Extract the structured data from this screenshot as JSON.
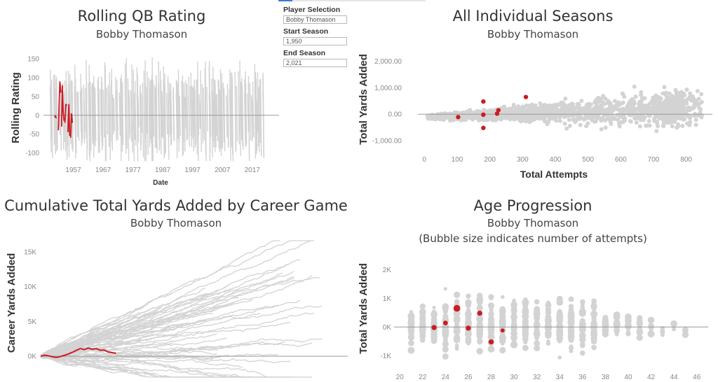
{
  "controls": {
    "player_label": "Player Selection",
    "player_value": "Bobby Thomason",
    "start_label": "Start Season",
    "start_value": "1,950",
    "end_label": "End Season",
    "end_value": "2,021"
  },
  "colors": {
    "highlight": "#cc1b24",
    "background_series": "#d3d3d3",
    "zero_line": "#999999"
  },
  "chart_data": [
    {
      "id": "rolling",
      "type": "line",
      "title": "Rolling QB Rating",
      "subtitle": "Bobby Thomason",
      "xlabel": "Date",
      "ylabel": "Rolling Rating",
      "xlim": [
        1947,
        2026
      ],
      "ylim": [
        -125,
        165
      ],
      "yticks": [
        150,
        100,
        50,
        0,
        -50,
        -100
      ],
      "xticks": [
        1957,
        1967,
        1977,
        1987,
        1997,
        2007,
        2017
      ],
      "grid": false,
      "highlight_series": {
        "name": "Bobby Thomason",
        "segments": [
          {
            "x": [
              1950.7,
              1951.0,
              1951.3
            ],
            "y": [
              -5,
              -2,
              -8
            ]
          },
          {
            "x": [
              1952.0,
              1952.2,
              1952.5,
              1952.8
            ],
            "y": [
              -40,
              20,
              90,
              60
            ]
          },
          {
            "x": [
              1953.1,
              1953.3,
              1953.6,
              1953.9
            ],
            "y": [
              -30,
              80,
              10,
              -15
            ]
          },
          {
            "x": [
              1954.2,
              1954.5,
              1954.8
            ],
            "y": [
              -20,
              30,
              25
            ]
          },
          {
            "x": [
              1955.2,
              1955.5,
              1955.8
            ],
            "y": [
              -45,
              30,
              -55
            ]
          },
          {
            "x": [
              1956.1,
              1956.4,
              1956.7
            ],
            "y": [
              -60,
              5,
              -20
            ]
          }
        ]
      }
    },
    {
      "id": "seasons",
      "type": "scatter",
      "title": "All Individual Seasons",
      "subtitle": "Bobby Thomason",
      "xlabel": "Total Attempts",
      "ylabel": "Total Yards Added",
      "xlim": [
        -20,
        880
      ],
      "ylim": [
        -1400,
        2550
      ],
      "xticks": [
        0,
        100,
        200,
        300,
        400,
        500,
        600,
        700,
        800
      ],
      "yticks": [
        2000,
        1000,
        0,
        -1000
      ],
      "ytick_labels": [
        "2,000.00",
        "1,000.00",
        "0.00",
        "-1,000.00"
      ],
      "grid": false,
      "highlight_points": [
        {
          "x": 103,
          "y": -110
        },
        {
          "x": 180,
          "y": 480
        },
        {
          "x": 180,
          "y": -20
        },
        {
          "x": 180,
          "y": -520
        },
        {
          "x": 222,
          "y": 20
        },
        {
          "x": 226,
          "y": 150
        },
        {
          "x": 310,
          "y": 650
        }
      ]
    },
    {
      "id": "cumulative",
      "type": "line",
      "title": "Cumulative Total Yards Added by Career Game",
      "subtitle": "Bobby Thomason",
      "xlabel": "",
      "ylabel": "Career Yards Added",
      "xlim": [
        0,
        310
      ],
      "ylim": [
        -3300,
        16800
      ],
      "yticks": [
        15000,
        10000,
        5000,
        0
      ],
      "ytick_labels": [
        "15K",
        "10K",
        "5K",
        "0K"
      ],
      "grid": false,
      "highlight_series": {
        "name": "Bobby Thomason",
        "x": [
          0,
          4,
          8,
          12,
          16,
          20,
          24,
          28,
          32,
          36,
          40,
          44,
          48,
          52,
          56,
          60,
          64,
          68,
          72,
          76
        ],
        "y": [
          0,
          150,
          60,
          -80,
          -180,
          -40,
          130,
          320,
          560,
          840,
          1100,
          950,
          1180,
          1000,
          1100,
          860,
          900,
          620,
          520,
          420
        ]
      }
    },
    {
      "id": "age",
      "type": "scatter",
      "title": "Age Progression",
      "subtitle": "Bobby Thomason",
      "subtitle2": "(Bubble size indicates number of attempts)",
      "xlabel": "",
      "ylabel": "Total Yards Added",
      "xlim": [
        19.5,
        47
      ],
      "ylim": [
        -1480,
        2620
      ],
      "xticks": [
        20,
        22,
        24,
        26,
        28,
        30,
        32,
        34,
        36,
        38,
        40,
        42,
        44,
        46
      ],
      "yticks": [
        2000,
        1000,
        0,
        -1000
      ],
      "ytick_labels": [
        "2K",
        "1K",
        "0K",
        "-1K"
      ],
      "grid": false,
      "highlight_points": [
        {
          "x": 23,
          "y": -20,
          "attempts": 180
        },
        {
          "x": 24,
          "y": 140,
          "attempts": 150
        },
        {
          "x": 25,
          "y": 650,
          "attempts": 310
        },
        {
          "x": 26,
          "y": -40,
          "attempts": 180
        },
        {
          "x": 27,
          "y": 480,
          "attempts": 180
        },
        {
          "x": 28,
          "y": -520,
          "attempts": 180
        },
        {
          "x": 29,
          "y": -120,
          "attempts": 103
        }
      ]
    }
  ]
}
